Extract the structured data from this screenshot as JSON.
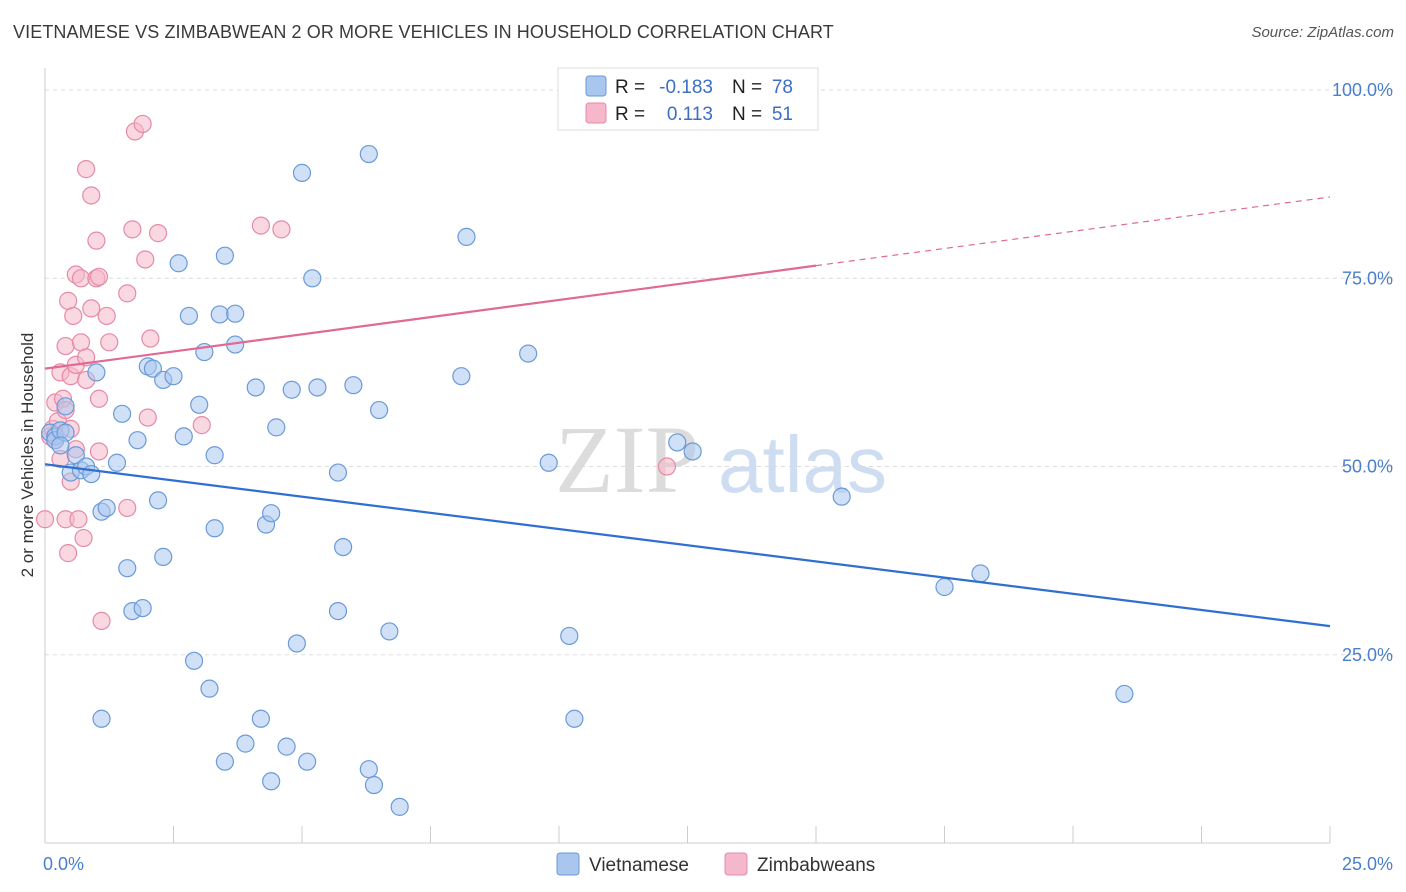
{
  "title": "VIETNAMESE VS ZIMBABWEAN 2 OR MORE VEHICLES IN HOUSEHOLD CORRELATION CHART",
  "source": "Source: ZipAtlas.com",
  "colors": {
    "vietnamese_fill": "#a9c6ee",
    "vietnamese_stroke": "#6a9ad8",
    "vietnamese_line": "#2f6fd1",
    "zimbabwean_fill": "#f5b8cb",
    "zimbabwean_stroke": "#e68aa8",
    "zimbabwean_line": "#e06a92",
    "tick_label": "#4a7fcc",
    "grid": "#dddddd"
  },
  "legend": {
    "rows": [
      {
        "r_label": "R =",
        "r_value": "-0.183",
        "n_label": "N =",
        "n_value": "78"
      },
      {
        "r_label": "R =",
        "r_value": "0.113",
        "n_label": "N =",
        "n_value": "51"
      }
    ]
  },
  "watermark": {
    "zip": "ZIP",
    "atlas": "atlas"
  },
  "chart_data": {
    "type": "scatter",
    "title": "VIETNAMESE VS ZIMBABWEAN 2 OR MORE VEHICLES IN HOUSEHOLD CORRELATION CHART",
    "xlabel": "",
    "ylabel": "2 or more Vehicles in Household",
    "xlim": [
      0,
      25
    ],
    "ylim": [
      0,
      102
    ],
    "x_ticks": [
      {
        "value": 0,
        "label": "0.0%"
      },
      {
        "value": 25,
        "label": "25.0%"
      }
    ],
    "y_ticks": [
      {
        "value": 25,
        "label": "25.0%"
      },
      {
        "value": 50,
        "label": "50.0%"
      },
      {
        "value": 75,
        "label": "75.0%"
      },
      {
        "value": 100,
        "label": "100.0%"
      }
    ],
    "series": [
      {
        "name": "Vietnamese",
        "r": -0.183,
        "n": 78,
        "trend": {
          "x0": 0,
          "y0": 50.3,
          "x1": 25,
          "y1": 28.8,
          "solid_to": 25
        },
        "points": [
          [
            0.1,
            54.5
          ],
          [
            0.2,
            54.0
          ],
          [
            0.2,
            53.5
          ],
          [
            0.3,
            54.8
          ],
          [
            0.4,
            54.5
          ],
          [
            0.4,
            58.0
          ],
          [
            0.5,
            49.2
          ],
          [
            0.6,
            51.5
          ],
          [
            0.7,
            49.5
          ],
          [
            0.8,
            50.0
          ],
          [
            0.9,
            49.0
          ],
          [
            1.0,
            62.5
          ],
          [
            1.1,
            44.0
          ],
          [
            1.2,
            44.5
          ],
          [
            1.4,
            50.5
          ],
          [
            1.5,
            57.0
          ],
          [
            1.6,
            36.5
          ],
          [
            1.7,
            30.8
          ],
          [
            1.8,
            53.5
          ],
          [
            1.9,
            31.2
          ],
          [
            2.0,
            63.3
          ],
          [
            2.1,
            63.0
          ],
          [
            2.2,
            45.5
          ],
          [
            2.3,
            61.5
          ],
          [
            2.3,
            38.0
          ],
          [
            2.5,
            62.0
          ],
          [
            2.6,
            77.0
          ],
          [
            2.7,
            54.0
          ],
          [
            2.8,
            70.0
          ],
          [
            2.9,
            24.2
          ],
          [
            3.0,
            58.2
          ],
          [
            3.1,
            65.2
          ],
          [
            3.2,
            20.5
          ],
          [
            3.3,
            41.8
          ],
          [
            3.3,
            51.5
          ],
          [
            3.4,
            70.2
          ],
          [
            3.5,
            10.8
          ],
          [
            3.5,
            78.0
          ],
          [
            3.7,
            66.2
          ],
          [
            3.7,
            70.3
          ],
          [
            3.9,
            13.2
          ],
          [
            4.1,
            60.5
          ],
          [
            4.2,
            16.5
          ],
          [
            4.3,
            42.3
          ],
          [
            4.4,
            8.2
          ],
          [
            4.4,
            43.8
          ],
          [
            4.5,
            55.2
          ],
          [
            4.7,
            12.8
          ],
          [
            4.8,
            60.2
          ],
          [
            4.9,
            26.5
          ],
          [
            5.0,
            89.0
          ],
          [
            5.1,
            10.8
          ],
          [
            5.2,
            75.0
          ],
          [
            5.3,
            60.5
          ],
          [
            5.7,
            49.2
          ],
          [
            5.7,
            30.8
          ],
          [
            5.8,
            39.3
          ],
          [
            6.0,
            60.8
          ],
          [
            6.3,
            91.5
          ],
          [
            6.3,
            9.8
          ],
          [
            6.4,
            7.7
          ],
          [
            6.5,
            57.5
          ],
          [
            6.7,
            28.1
          ],
          [
            6.9,
            4.8
          ],
          [
            8.1,
            62.0
          ],
          [
            8.2,
            80.5
          ],
          [
            9.4,
            65.0
          ],
          [
            9.8,
            50.5
          ],
          [
            10.2,
            27.5
          ],
          [
            10.3,
            16.5
          ],
          [
            12.3,
            53.2
          ],
          [
            12.6,
            52.0
          ],
          [
            15.5,
            46.0
          ],
          [
            17.5,
            34.0
          ],
          [
            18.2,
            35.8
          ],
          [
            21.0,
            19.8
          ],
          [
            1.1,
            16.5
          ],
          [
            0.3,
            52.8
          ]
        ]
      },
      {
        "name": "Zimbabweans",
        "r": 0.113,
        "n": 51,
        "trend": {
          "x0": 0,
          "y0": 63.0,
          "x1": 25,
          "y1": 85.8,
          "solid_to": 15
        },
        "points": [
          [
            0.0,
            43.0
          ],
          [
            0.1,
            54.0
          ],
          [
            0.15,
            55.0
          ],
          [
            0.2,
            58.5
          ],
          [
            0.2,
            53.5
          ],
          [
            0.25,
            56.0
          ],
          [
            0.3,
            62.5
          ],
          [
            0.3,
            51.0
          ],
          [
            0.35,
            59.0
          ],
          [
            0.4,
            57.5
          ],
          [
            0.4,
            43.0
          ],
          [
            0.4,
            66.0
          ],
          [
            0.45,
            72.0
          ],
          [
            0.45,
            38.5
          ],
          [
            0.5,
            62.0
          ],
          [
            0.5,
            48.0
          ],
          [
            0.5,
            55.0
          ],
          [
            0.55,
            70.0
          ],
          [
            0.6,
            63.5
          ],
          [
            0.6,
            75.5
          ],
          [
            0.65,
            43.0
          ],
          [
            0.7,
            75.0
          ],
          [
            0.7,
            66.5
          ],
          [
            0.8,
            61.5
          ],
          [
            0.8,
            64.5
          ],
          [
            0.75,
            40.5
          ],
          [
            0.8,
            89.5
          ],
          [
            0.9,
            86.0
          ],
          [
            0.9,
            71.0
          ],
          [
            1.0,
            80.0
          ],
          [
            1.0,
            75.0
          ],
          [
            1.05,
            59.0
          ],
          [
            1.05,
            75.2
          ],
          [
            1.05,
            52.0
          ],
          [
            1.1,
            29.5
          ],
          [
            1.2,
            70.0
          ],
          [
            1.25,
            66.5
          ],
          [
            1.6,
            44.5
          ],
          [
            1.6,
            73.0
          ],
          [
            1.7,
            81.5
          ],
          [
            1.75,
            94.5
          ],
          [
            1.9,
            95.5
          ],
          [
            1.95,
            77.5
          ],
          [
            2.0,
            56.5
          ],
          [
            2.05,
            67.0
          ],
          [
            2.2,
            81.0
          ],
          [
            3.05,
            55.5
          ],
          [
            4.2,
            82.0
          ],
          [
            4.6,
            81.5
          ],
          [
            12.1,
            50.0
          ],
          [
            0.6,
            52.3
          ]
        ]
      }
    ],
    "legend_labels": [
      "Vietnamese",
      "Zimbabweans"
    ]
  }
}
